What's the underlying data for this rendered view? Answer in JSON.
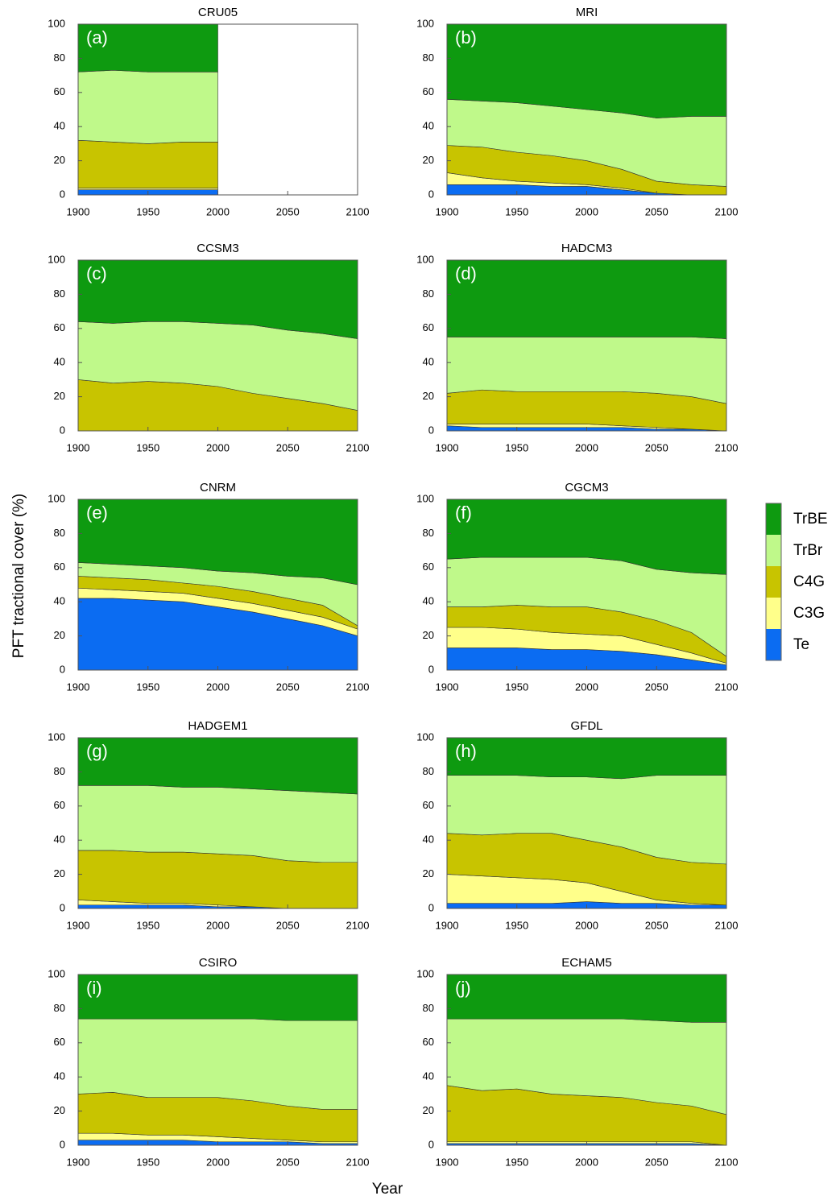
{
  "y_label": "PFT tractional cover (%)",
  "x_label": "Year",
  "chart_data": [
    {
      "type": "area",
      "title": "CRU05",
      "panel": "(a)",
      "x": [
        1900,
        1925,
        1950,
        1975,
        2000
      ],
      "xlim": [
        1900,
        2100
      ],
      "ylim": [
        0,
        100
      ],
      "xticks": [
        1900,
        1950,
        2000,
        2050,
        2100
      ],
      "yticks": [
        0,
        20,
        40,
        60,
        80,
        100
      ],
      "series": [
        {
          "name": "Te",
          "color": "#0b6cf2",
          "values": [
            3,
            3,
            3,
            3,
            3
          ]
        },
        {
          "name": "C3G",
          "color": "#ffff8a",
          "values": [
            1,
            1,
            1,
            1,
            1
          ]
        },
        {
          "name": "C4G",
          "color": "#c8c400",
          "values": [
            28,
            27,
            26,
            27,
            27
          ]
        },
        {
          "name": "TrBr",
          "color": "#bff98a",
          "values": [
            40,
            42,
            42,
            41,
            41
          ]
        },
        {
          "name": "TrBE",
          "color": "#0e9a10",
          "values": [
            28,
            27,
            28,
            28,
            28
          ]
        }
      ]
    },
    {
      "type": "area",
      "title": "MRI",
      "panel": "(b)",
      "x": [
        1900,
        1925,
        1950,
        1975,
        2000,
        2025,
        2050,
        2075,
        2100
      ],
      "xlim": [
        1900,
        2100
      ],
      "ylim": [
        0,
        100
      ],
      "xticks": [
        1900,
        1950,
        2000,
        2050,
        2100
      ],
      "yticks": [
        0,
        20,
        40,
        60,
        80,
        100
      ],
      "series": [
        {
          "name": "Te",
          "color": "#0b6cf2",
          "values": [
            6,
            6,
            6,
            5,
            5,
            3,
            1,
            0,
            0
          ]
        },
        {
          "name": "C3G",
          "color": "#ffff8a",
          "values": [
            7,
            4,
            2,
            2,
            1,
            1,
            0,
            0,
            0
          ]
        },
        {
          "name": "C4G",
          "color": "#c8c400",
          "values": [
            16,
            18,
            17,
            16,
            14,
            11,
            7,
            6,
            5
          ]
        },
        {
          "name": "TrBr",
          "color": "#bff98a",
          "values": [
            27,
            27,
            29,
            29,
            30,
            33,
            37,
            40,
            41
          ]
        },
        {
          "name": "TrBE",
          "color": "#0e9a10",
          "values": [
            44,
            45,
            46,
            48,
            50,
            52,
            55,
            54,
            54
          ]
        }
      ]
    },
    {
      "type": "area",
      "title": "CCSM3",
      "panel": "(c)",
      "x": [
        1900,
        1925,
        1950,
        1975,
        2000,
        2025,
        2050,
        2075,
        2100
      ],
      "xlim": [
        1900,
        2100
      ],
      "ylim": [
        0,
        100
      ],
      "xticks": [
        1900,
        1950,
        2000,
        2050,
        2100
      ],
      "yticks": [
        0,
        20,
        40,
        60,
        80,
        100
      ],
      "series": [
        {
          "name": "Te",
          "color": "#0b6cf2",
          "values": [
            0,
            0,
            0,
            0,
            0,
            0,
            0,
            0,
            0
          ]
        },
        {
          "name": "C3G",
          "color": "#ffff8a",
          "values": [
            0,
            0,
            0,
            0,
            0,
            0,
            0,
            0,
            0
          ]
        },
        {
          "name": "C4G",
          "color": "#c8c400",
          "values": [
            30,
            28,
            29,
            28,
            26,
            22,
            19,
            16,
            12
          ]
        },
        {
          "name": "TrBr",
          "color": "#bff98a",
          "values": [
            34,
            35,
            35,
            36,
            37,
            40,
            40,
            41,
            42
          ]
        },
        {
          "name": "TrBE",
          "color": "#0e9a10",
          "values": [
            36,
            37,
            36,
            36,
            37,
            38,
            41,
            43,
            46
          ]
        }
      ]
    },
    {
      "type": "area",
      "title": "HADCM3",
      "panel": "(d)",
      "x": [
        1900,
        1925,
        1950,
        1975,
        2000,
        2025,
        2050,
        2075,
        2100
      ],
      "xlim": [
        1900,
        2100
      ],
      "ylim": [
        0,
        100
      ],
      "xticks": [
        1900,
        1950,
        2000,
        2050,
        2100
      ],
      "yticks": [
        0,
        20,
        40,
        60,
        80,
        100
      ],
      "series": [
        {
          "name": "Te",
          "color": "#0b6cf2",
          "values": [
            3,
            2,
            2,
            2,
            2,
            2,
            1,
            1,
            0
          ]
        },
        {
          "name": "C3G",
          "color": "#ffff8a",
          "values": [
            1,
            2,
            2,
            2,
            2,
            1,
            1,
            0,
            0
          ]
        },
        {
          "name": "C4G",
          "color": "#c8c400",
          "values": [
            18,
            20,
            19,
            19,
            19,
            20,
            20,
            19,
            16
          ]
        },
        {
          "name": "TrBr",
          "color": "#bff98a",
          "values": [
            33,
            31,
            32,
            32,
            32,
            32,
            33,
            35,
            38
          ]
        },
        {
          "name": "TrBE",
          "color": "#0e9a10",
          "values": [
            45,
            45,
            45,
            45,
            45,
            45,
            45,
            45,
            46
          ]
        }
      ]
    },
    {
      "type": "area",
      "title": "CNRM",
      "panel": "(e)",
      "x": [
        1900,
        1925,
        1950,
        1975,
        2000,
        2025,
        2050,
        2075,
        2100
      ],
      "xlim": [
        1900,
        2100
      ],
      "ylim": [
        0,
        100
      ],
      "xticks": [
        1900,
        1950,
        2000,
        2050,
        2100
      ],
      "yticks": [
        0,
        20,
        40,
        60,
        80,
        100
      ],
      "series": [
        {
          "name": "Te",
          "color": "#0b6cf2",
          "values": [
            42,
            42,
            41,
            40,
            37,
            34,
            30,
            26,
            20
          ]
        },
        {
          "name": "C3G",
          "color": "#ffff8a",
          "values": [
            6,
            5,
            5,
            5,
            5,
            5,
            5,
            5,
            4
          ]
        },
        {
          "name": "C4G",
          "color": "#c8c400",
          "values": [
            7,
            7,
            7,
            6,
            7,
            7,
            7,
            7,
            2
          ]
        },
        {
          "name": "TrBr",
          "color": "#bff98a",
          "values": [
            8,
            8,
            8,
            9,
            9,
            11,
            13,
            16,
            24
          ]
        },
        {
          "name": "TrBE",
          "color": "#0e9a10",
          "values": [
            37,
            38,
            39,
            40,
            42,
            43,
            45,
            46,
            50
          ]
        }
      ]
    },
    {
      "type": "area",
      "title": "CGCM3",
      "panel": "(f)",
      "x": [
        1900,
        1925,
        1950,
        1975,
        2000,
        2025,
        2050,
        2075,
        2100
      ],
      "xlim": [
        1900,
        2100
      ],
      "ylim": [
        0,
        100
      ],
      "xticks": [
        1900,
        1950,
        2000,
        2050,
        2100
      ],
      "yticks": [
        0,
        20,
        40,
        60,
        80,
        100
      ],
      "series": [
        {
          "name": "Te",
          "color": "#0b6cf2",
          "values": [
            13,
            13,
            13,
            12,
            12,
            11,
            9,
            6,
            3
          ]
        },
        {
          "name": "C3G",
          "color": "#ffff8a",
          "values": [
            12,
            12,
            11,
            10,
            9,
            9,
            6,
            4,
            1
          ]
        },
        {
          "name": "C4G",
          "color": "#c8c400",
          "values": [
            12,
            12,
            14,
            15,
            16,
            14,
            14,
            12,
            4
          ]
        },
        {
          "name": "TrBr",
          "color": "#bff98a",
          "values": [
            28,
            29,
            28,
            29,
            29,
            30,
            30,
            35,
            48
          ]
        },
        {
          "name": "TrBE",
          "color": "#0e9a10",
          "values": [
            35,
            34,
            34,
            34,
            34,
            36,
            41,
            43,
            44
          ]
        }
      ]
    },
    {
      "type": "area",
      "title": "HADGEM1",
      "panel": "(g)",
      "x": [
        1900,
        1925,
        1950,
        1975,
        2000,
        2025,
        2050,
        2075,
        2100
      ],
      "xlim": [
        1900,
        2100
      ],
      "ylim": [
        0,
        100
      ],
      "xticks": [
        1900,
        1950,
        2000,
        2050,
        2100
      ],
      "yticks": [
        0,
        20,
        40,
        60,
        80,
        100
      ],
      "series": [
        {
          "name": "Te",
          "color": "#0b6cf2",
          "values": [
            2,
            2,
            2,
            2,
            1,
            1,
            0,
            0,
            0
          ]
        },
        {
          "name": "C3G",
          "color": "#ffff8a",
          "values": [
            3,
            2,
            1,
            1,
            1,
            0,
            0,
            0,
            0
          ]
        },
        {
          "name": "C4G",
          "color": "#c8c400",
          "values": [
            29,
            30,
            30,
            30,
            30,
            30,
            28,
            27,
            27
          ]
        },
        {
          "name": "TrBr",
          "color": "#bff98a",
          "values": [
            38,
            38,
            39,
            38,
            39,
            39,
            41,
            41,
            40
          ]
        },
        {
          "name": "TrBE",
          "color": "#0e9a10",
          "values": [
            28,
            28,
            28,
            29,
            29,
            30,
            31,
            32,
            33
          ]
        }
      ]
    },
    {
      "type": "area",
      "title": "GFDL",
      "panel": "(h)",
      "x": [
        1900,
        1925,
        1950,
        1975,
        2000,
        2025,
        2050,
        2075,
        2100
      ],
      "xlim": [
        1900,
        2100
      ],
      "ylim": [
        0,
        100
      ],
      "xticks": [
        1900,
        1950,
        2000,
        2050,
        2100
      ],
      "yticks": [
        0,
        20,
        40,
        60,
        80,
        100
      ],
      "series": [
        {
          "name": "Te",
          "color": "#0b6cf2",
          "values": [
            3,
            3,
            3,
            3,
            4,
            3,
            3,
            2,
            2
          ]
        },
        {
          "name": "C3G",
          "color": "#ffff8a",
          "values": [
            17,
            16,
            15,
            14,
            11,
            7,
            2,
            1,
            0
          ]
        },
        {
          "name": "C4G",
          "color": "#c8c400",
          "values": [
            24,
            24,
            26,
            27,
            25,
            26,
            25,
            24,
            24
          ]
        },
        {
          "name": "TrBr",
          "color": "#bff98a",
          "values": [
            34,
            35,
            34,
            33,
            37,
            40,
            48,
            51,
            52
          ]
        },
        {
          "name": "TrBE",
          "color": "#0e9a10",
          "values": [
            22,
            22,
            22,
            23,
            23,
            24,
            22,
            22,
            22
          ]
        }
      ]
    },
    {
      "type": "area",
      "title": "CSIRO",
      "panel": "(i)",
      "x": [
        1900,
        1925,
        1950,
        1975,
        2000,
        2025,
        2050,
        2075,
        2100
      ],
      "xlim": [
        1900,
        2100
      ],
      "ylim": [
        0,
        100
      ],
      "xticks": [
        1900,
        1950,
        2000,
        2050,
        2100
      ],
      "yticks": [
        0,
        20,
        40,
        60,
        80,
        100
      ],
      "series": [
        {
          "name": "Te",
          "color": "#0b6cf2",
          "values": [
            3,
            3,
            3,
            3,
            2,
            2,
            2,
            1,
            1
          ]
        },
        {
          "name": "C3G",
          "color": "#ffff8a",
          "values": [
            4,
            4,
            3,
            3,
            3,
            2,
            1,
            1,
            1
          ]
        },
        {
          "name": "C4G",
          "color": "#c8c400",
          "values": [
            23,
            24,
            22,
            22,
            23,
            22,
            20,
            19,
            19
          ]
        },
        {
          "name": "TrBr",
          "color": "#bff98a",
          "values": [
            44,
            43,
            46,
            46,
            46,
            48,
            50,
            52,
            52
          ]
        },
        {
          "name": "TrBE",
          "color": "#0e9a10",
          "values": [
            26,
            26,
            26,
            26,
            26,
            26,
            27,
            27,
            27
          ]
        }
      ]
    },
    {
      "type": "area",
      "title": "ECHAM5",
      "panel": "(j)",
      "x": [
        1900,
        1925,
        1950,
        1975,
        2000,
        2025,
        2050,
        2075,
        2100
      ],
      "xlim": [
        1900,
        2100
      ],
      "ylim": [
        0,
        100
      ],
      "xticks": [
        1900,
        1950,
        2000,
        2050,
        2100
      ],
      "yticks": [
        0,
        20,
        40,
        60,
        80,
        100
      ],
      "series": [
        {
          "name": "Te",
          "color": "#0b6cf2",
          "values": [
            1,
            1,
            1,
            1,
            1,
            1,
            1,
            1,
            0
          ]
        },
        {
          "name": "C3G",
          "color": "#ffff8a",
          "values": [
            1,
            1,
            1,
            1,
            1,
            1,
            1,
            1,
            0
          ]
        },
        {
          "name": "C4G",
          "color": "#c8c400",
          "values": [
            33,
            30,
            31,
            28,
            27,
            26,
            23,
            21,
            18
          ]
        },
        {
          "name": "TrBr",
          "color": "#bff98a",
          "values": [
            39,
            42,
            41,
            44,
            45,
            46,
            48,
            49,
            54
          ]
        },
        {
          "name": "TrBE",
          "color": "#0e9a10",
          "values": [
            26,
            26,
            26,
            26,
            26,
            26,
            27,
            28,
            28
          ]
        }
      ]
    }
  ]
}
